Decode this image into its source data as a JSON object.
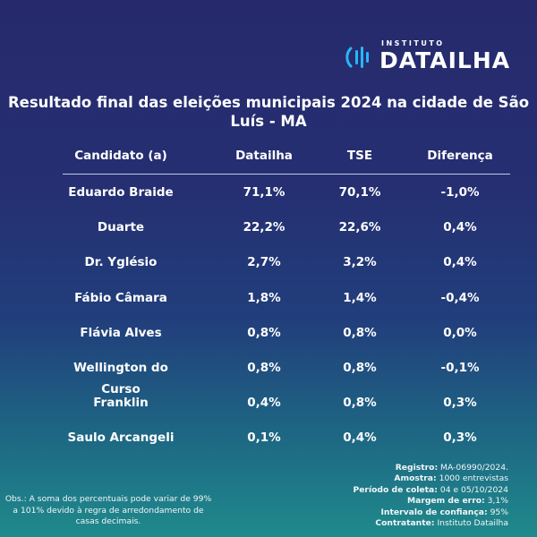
{
  "brand": {
    "small": "INSTITUTO",
    "name": "DATAILHA",
    "accent_color": "#29b6f6",
    "icon": "sound-wave-logo-icon"
  },
  "chart_data": {
    "type": "table",
    "title": "Resultado final das eleições municipais 2024 na cidade de São Luís - MA",
    "columns": [
      "Candidato (a)",
      "Datailha",
      "TSE",
      "Diferença"
    ],
    "rows": [
      [
        "Eduardo Braide",
        "71,1%",
        "70,1%",
        "-1,0%"
      ],
      [
        "Duarte",
        "22,2%",
        "22,6%",
        "0,4%"
      ],
      [
        "Dr. Yglésio",
        "2,7%",
        "3,2%",
        "0,4%"
      ],
      [
        "Fábio Câmara",
        "1,8%",
        "1,4%",
        "-0,4%"
      ],
      [
        "Flávia Alves",
        "0,8%",
        "0,8%",
        "0,0%"
      ],
      [
        "Wellington do Curso",
        "0,8%",
        "0,8%",
        "-0,1%"
      ],
      [
        "Franklin",
        "0,4%",
        "0,8%",
        "0,3%"
      ],
      [
        "Saulo Arcangeli",
        "0,1%",
        "0,4%",
        "0,3%"
      ]
    ]
  },
  "footnote": {
    "obs": "Obs.: A soma dos percentuais pode variar de 99% a 101% devido à regra de arredondamento de casas decimais."
  },
  "meta": [
    {
      "label": "Registro:",
      "value": "MA-06990/2024."
    },
    {
      "label": "Amostra:",
      "value": "1000 entrevistas"
    },
    {
      "label": "Período de coleta:",
      "value": "04 e 05/10/2024"
    },
    {
      "label": "Margem de erro:",
      "value": "3,1%"
    },
    {
      "label": "Intervalo de confiança:",
      "value": "95%"
    },
    {
      "label": "Contratante:",
      "value": "Instituto Datailha"
    }
  ]
}
